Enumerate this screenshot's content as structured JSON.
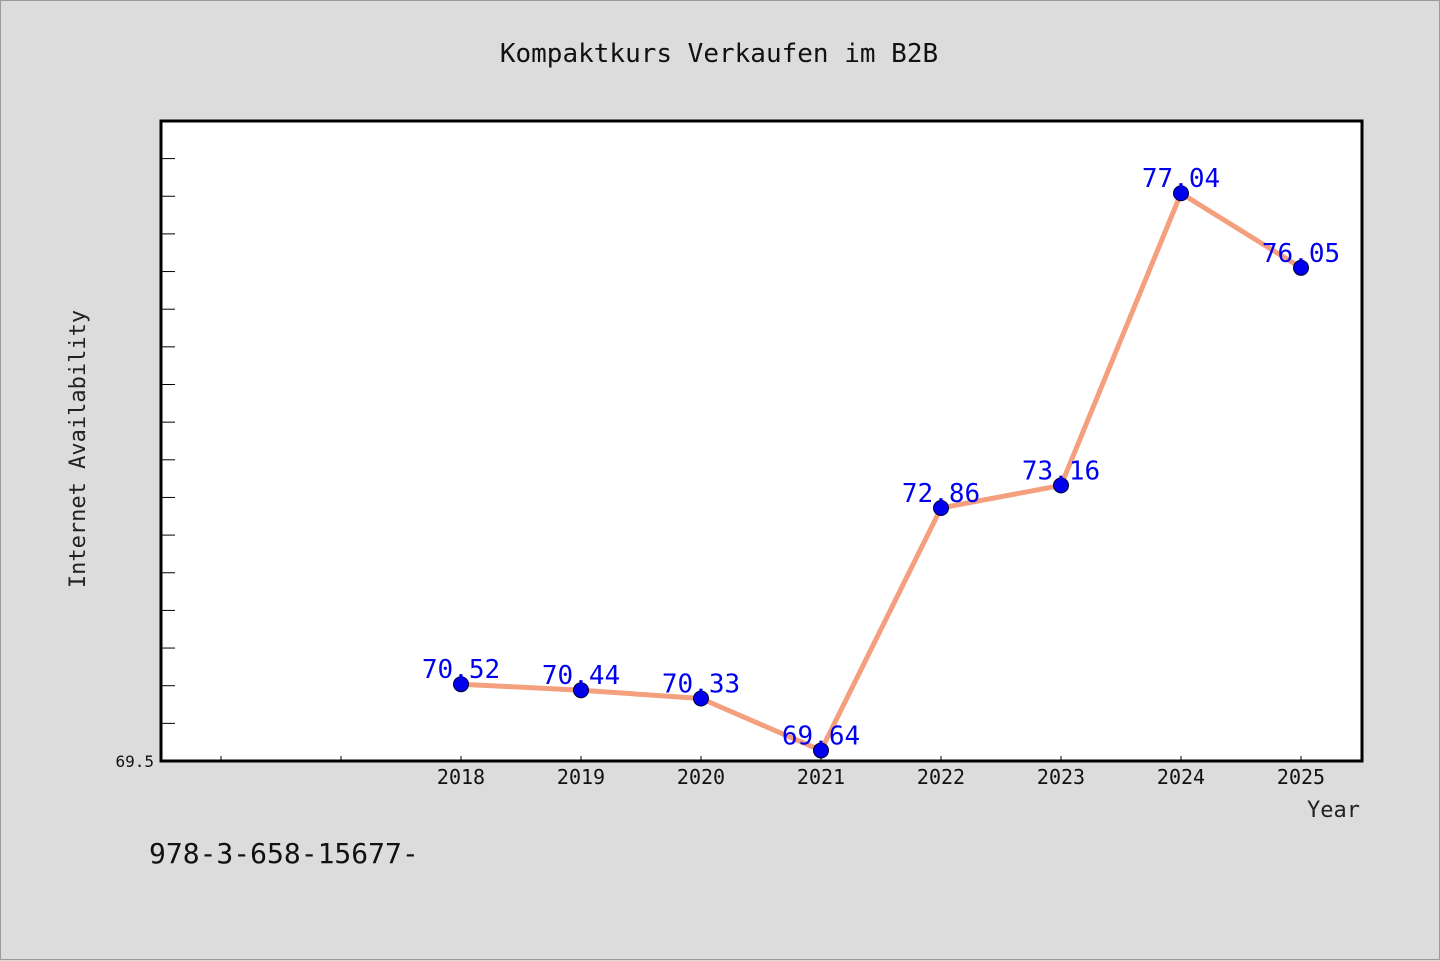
{
  "chart_data": {
    "type": "line",
    "title": "Kompaktkurs Verkaufen im B2B",
    "xlabel": "Year",
    "ylabel": "Internet Availability",
    "x": [
      "2018",
      "2019",
      "2020",
      "2021",
      "2022",
      "2023",
      "2024",
      "2025"
    ],
    "y": [
      70.52,
      70.44,
      70.33,
      69.64,
      72.86,
      73.16,
      77.04,
      76.05
    ],
    "data_labels": [
      "70.52",
      "70.44",
      "70.33",
      "69.64",
      "72.86",
      "73.16",
      "77.04",
      "76.05"
    ],
    "y_tick_labels": [
      "69.5"
    ],
    "ylim": [
      69.5,
      78.0
    ],
    "grid": false,
    "legend": "none",
    "colors": {
      "line": "#f4a07e",
      "marker": "#0000ee",
      "marker_edge": "#000033",
      "data_label": "#0000ee",
      "plot_background": "#ffffff",
      "page_background": "#dcdcdc"
    }
  },
  "footer": {
    "note": "978-3-658-15677-"
  }
}
